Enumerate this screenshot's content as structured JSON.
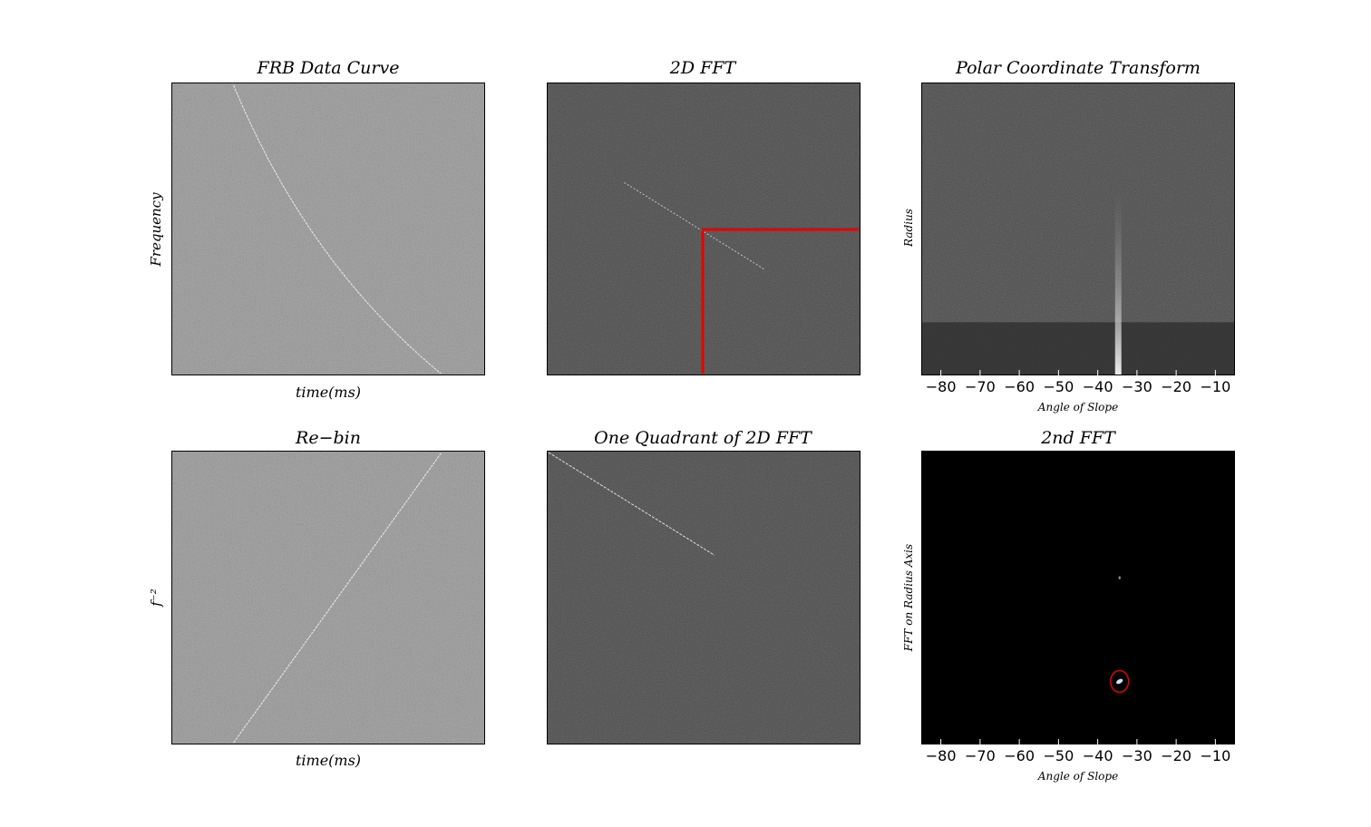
{
  "colors": {
    "noise_light": "#7a7a7a",
    "noise_dark": "#141414",
    "signal": "#ffffff",
    "highlight": "#e60000",
    "axis": "#000000"
  },
  "chart_data": [
    {
      "type": "heatmap",
      "title": "FRB Data Curve",
      "xlabel": "time(ms)",
      "ylabel": "Frequency",
      "grid": false,
      "colormap": "gray",
      "background": "noise_light",
      "features": [
        "dispersed curve from top-left to bottom-right"
      ]
    },
    {
      "type": "heatmap",
      "title": "2D FFT",
      "xlabel": "",
      "ylabel": "",
      "grid": false,
      "colormap": "gray",
      "background": "noise_dark",
      "features": [
        "faint diagonal line through center",
        "red lines marking lower-right quadrant"
      ]
    },
    {
      "type": "heatmap",
      "title": "Polar Coordinate Transform",
      "xlabel": "Angle of Slope",
      "ylabel": "Radius",
      "xticks": [
        -80,
        -70,
        -60,
        -50,
        -40,
        -30,
        -20,
        -10
      ],
      "xlim": [
        -85,
        -5
      ],
      "grid": false,
      "colormap": "gray",
      "background": "noise_dark",
      "features": [
        "bright vertical feature near -34 degrees, brightest at small radius"
      ]
    },
    {
      "type": "heatmap",
      "title": "Re−bin",
      "xlabel": "time(ms)",
      "ylabel": "f⁻²",
      "grid": false,
      "colormap": "gray",
      "background": "noise_light",
      "features": [
        "straight line from bottom-left to top-right"
      ]
    },
    {
      "type": "heatmap",
      "title": "One Quadrant of 2D FFT",
      "xlabel": "",
      "ylabel": "",
      "grid": false,
      "colormap": "gray",
      "background": "noise_dark",
      "features": [
        "diagonal line from top-left corner"
      ]
    },
    {
      "type": "heatmap",
      "title": "2nd FFT",
      "xlabel": "Angle of Slope",
      "ylabel": "FFT on Radius Axis",
      "xticks": [
        -80,
        -70,
        -60,
        -50,
        -40,
        -30,
        -20,
        -10
      ],
      "xlim": [
        -85,
        -5
      ],
      "grid": false,
      "colormap": "gray",
      "background": "black",
      "features": [
        "peak near -34 degrees circled in red",
        "faint secondary dot near -34 degrees"
      ]
    }
  ]
}
